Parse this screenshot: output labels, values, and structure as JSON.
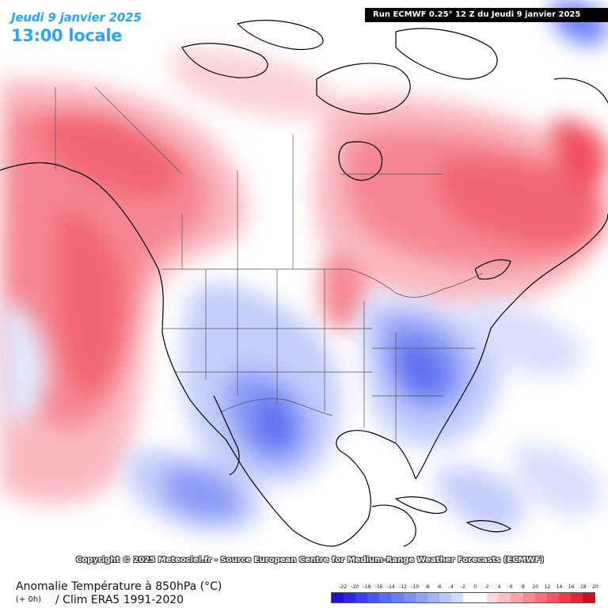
{
  "header": {
    "date_label": "Jeudi 9 janvier 2025",
    "time_label": "13:00 locale",
    "run_label": "Run ECMWF 0.25° 12 Z du Jeudi 9 janvier 2025"
  },
  "copyright": "Copyright © 2025 Meteociel.fr - Source European Centre for Medium-Range Weather Forecasts (ECMWF)",
  "footer": {
    "parameter": "Anomalie Température à 850hPa (°C)",
    "lead": "(+ 0h)",
    "climatology": "/ Clim ERA5 1991-2020"
  },
  "map": {
    "region": "North America",
    "variable": "850 hPa temperature anomaly",
    "units": "°C",
    "overlays": [
      "coastlines",
      "country borders",
      "state and province borders"
    ],
    "colors": {
      "ocean_land_neutral": "#ffffff",
      "warm_peak": "#f4495a",
      "cold_peak": "#3e4ce8"
    }
  },
  "legend": {
    "ticks": [
      "-22",
      "-20",
      "-18",
      "-16",
      "-14",
      "-12",
      "-10",
      "-8",
      "-6",
      "-4",
      "-2",
      "0",
      "2",
      "4",
      "6",
      "8",
      "10",
      "12",
      "14",
      "16",
      "18",
      "20"
    ],
    "colors": [
      "#1f10d8",
      "#2b25e4",
      "#3a3ef0",
      "#4a56f4",
      "#5a6cf4",
      "#6b7ff5",
      "#7b90f6",
      "#8ea2f7",
      "#a2b4f8",
      "#b8c6fa",
      "#d2dbfc",
      "#ffffff",
      "#ffffff",
      "#fdd8da",
      "#fbbec2",
      "#f9a4ab",
      "#f78a93",
      "#f5707b",
      "#f35463",
      "#ee3a4a",
      "#e42536",
      "#cc1024"
    ]
  }
}
